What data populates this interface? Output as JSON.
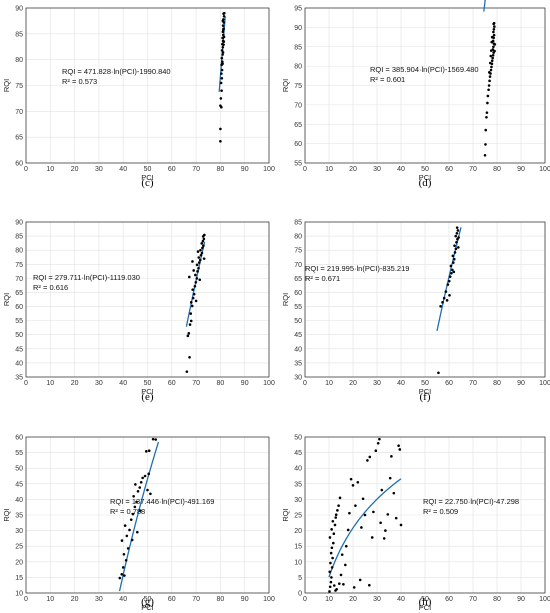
{
  "chart_data": [
    {
      "type": "scatter",
      "panel": "(c)",
      "xlabel": "PCI",
      "ylabel": "RQI",
      "xlim": [
        0,
        100
      ],
      "ylim": [
        60,
        90
      ],
      "xticks": [
        0,
        10,
        20,
        30,
        40,
        50,
        60,
        70,
        80,
        90,
        100
      ],
      "yticks": [
        60,
        65,
        70,
        75,
        80,
        85,
        90
      ],
      "grid": true,
      "annotation": [
        "RQI = 471.828·ln(PCI)-1990.840",
        "R² = 0.573"
      ],
      "fit": {
        "a": 471.828,
        "b": -1990.84,
        "x_range": [
          79.5,
          82
        ]
      },
      "points": [
        [
          80,
          64.2
        ],
        [
          80,
          66.6
        ],
        [
          80,
          71.1
        ],
        [
          80.4,
          70.8
        ],
        [
          80.2,
          72.5
        ],
        [
          80.5,
          74.0
        ],
        [
          80.3,
          75.5
        ],
        [
          80.6,
          76.4
        ],
        [
          80.4,
          77.3
        ],
        [
          80.7,
          78.0
        ],
        [
          80.5,
          79.0
        ],
        [
          80.8,
          79.6
        ],
        [
          80.6,
          80.3
        ],
        [
          80.9,
          81.0
        ],
        [
          80.7,
          81.8
        ],
        [
          81.0,
          82.4
        ],
        [
          80.8,
          83.0
        ],
        [
          81.1,
          83.6
        ],
        [
          80.9,
          84.2
        ],
        [
          81.2,
          84.8
        ],
        [
          81.0,
          85.4
        ],
        [
          81.3,
          86.0
        ],
        [
          81.1,
          86.6
        ],
        [
          81.4,
          87.2
        ],
        [
          81.2,
          87.8
        ],
        [
          81.5,
          88.4
        ],
        [
          81.3,
          88.9
        ],
        [
          81.6,
          89.0
        ],
        [
          81.0,
          87.5
        ],
        [
          81.2,
          85.8
        ],
        [
          81.4,
          83.5
        ],
        [
          80.9,
          79.2
        ],
        [
          81.1,
          81.4
        ],
        [
          81.3,
          82.9
        ],
        [
          81.5,
          84.4
        ]
      ]
    },
    {
      "type": "scatter",
      "panel": "(d)",
      "xlabel": "PCI",
      "ylabel": "RQI",
      "xlim": [
        0,
        100
      ],
      "ylim": [
        55,
        95
      ],
      "xticks": [
        0,
        10,
        20,
        30,
        40,
        50,
        60,
        70,
        80,
        90,
        100
      ],
      "yticks": [
        55,
        60,
        65,
        70,
        75,
        80,
        85,
        90,
        95
      ],
      "grid": true,
      "annotation": [
        "RQI = 385.904·ln(PCI)-1569.480",
        "R² = 0.601"
      ],
      "fit": {
        "a": 385.904,
        "b": -1569.48,
        "x_range": [
          74.5,
          79
        ]
      },
      "points": [
        [
          75,
          57.0
        ],
        [
          75.2,
          59.8
        ],
        [
          75.3,
          63.5
        ],
        [
          75.6,
          66.8
        ],
        [
          75.8,
          68.0
        ],
        [
          76.0,
          70.5
        ],
        [
          76.2,
          72.3
        ],
        [
          76.5,
          73.9
        ],
        [
          76.7,
          75.0
        ],
        [
          76.9,
          76.2
        ],
        [
          77.1,
          77.3
        ],
        [
          77.3,
          78.1
        ],
        [
          77.5,
          79.0
        ],
        [
          77.7,
          79.8
        ],
        [
          77.9,
          80.6
        ],
        [
          78.0,
          81.4
        ],
        [
          78.2,
          82.1
        ],
        [
          78.4,
          82.8
        ],
        [
          78.6,
          83.5
        ],
        [
          78.3,
          84.3
        ],
        [
          78.5,
          85.0
        ],
        [
          78.7,
          85.8
        ],
        [
          78.4,
          86.5
        ],
        [
          78.6,
          87.3
        ],
        [
          78.8,
          88.0
        ],
        [
          78.5,
          88.8
        ],
        [
          78.7,
          89.5
        ],
        [
          78.9,
          90.2
        ],
        [
          78.6,
          90.9
        ],
        [
          78.8,
          91.1
        ],
        [
          77.6,
          84.0
        ],
        [
          77.8,
          86.2
        ],
        [
          78.0,
          87.5
        ],
        [
          77.2,
          80.8
        ],
        [
          77.4,
          82.6
        ],
        [
          76.8,
          78.4
        ],
        [
          79.0,
          83.9
        ],
        [
          79.1,
          85.6
        ]
      ]
    },
    {
      "type": "scatter",
      "panel": "(e)",
      "xlabel": "PCI",
      "ylabel": "RQI",
      "xlim": [
        0,
        100
      ],
      "ylim": [
        35,
        90
      ],
      "xticks": [
        0,
        10,
        20,
        30,
        40,
        50,
        60,
        70,
        80,
        90,
        100
      ],
      "yticks": [
        35,
        40,
        45,
        50,
        55,
        60,
        65,
        70,
        75,
        80,
        85,
        90
      ],
      "grid": true,
      "annotation": [
        "RQI = 279.711·ln(PCI)-1119.030",
        "R² = 0.616"
      ],
      "fit": {
        "a": 279.711,
        "b": -1119.03,
        "x_range": [
          66,
          73.5
        ]
      },
      "points": [
        [
          66.2,
          36.9
        ],
        [
          67.3,
          42.0
        ],
        [
          66.6,
          49.6
        ],
        [
          67.0,
          50.5
        ],
        [
          67.5,
          53.6
        ],
        [
          68.0,
          54.9
        ],
        [
          67.8,
          57.5
        ],
        [
          68.4,
          60.2
        ],
        [
          68.0,
          61.5
        ],
        [
          68.8,
          63.0
        ],
        [
          69.2,
          64.4
        ],
        [
          68.6,
          66.0
        ],
        [
          69.5,
          67.2
        ],
        [
          69.9,
          68.6
        ],
        [
          70.3,
          70.0
        ],
        [
          69.7,
          71.2
        ],
        [
          70.6,
          72.5
        ],
        [
          71.0,
          73.6
        ],
        [
          70.4,
          74.8
        ],
        [
          71.3,
          75.6
        ],
        [
          71.7,
          76.5
        ],
        [
          71.1,
          77.4
        ],
        [
          72.0,
          78.2
        ],
        [
          72.4,
          79.0
        ],
        [
          71.8,
          80.0
        ],
        [
          72.6,
          80.8
        ],
        [
          73.0,
          81.6
        ],
        [
          72.3,
          82.4
        ],
        [
          72.8,
          83.2
        ],
        [
          73.2,
          84.0
        ],
        [
          72.9,
          84.9
        ],
        [
          73.4,
          85.4
        ],
        [
          70.0,
          62.0
        ],
        [
          69.0,
          72.8
        ],
        [
          68.5,
          76.0
        ],
        [
          71.5,
          69.5
        ],
        [
          70.8,
          79.5
        ],
        [
          73.3,
          77.0
        ],
        [
          67.2,
          70.5
        ]
      ]
    },
    {
      "type": "scatter",
      "panel": "(f)",
      "xlabel": "PCI",
      "ylabel": "RQI",
      "xlim": [
        0,
        100
      ],
      "ylim": [
        30,
        85
      ],
      "xticks": [
        0,
        10,
        20,
        30,
        40,
        50,
        60,
        70,
        80,
        90,
        100
      ],
      "yticks": [
        30,
        35,
        40,
        45,
        50,
        55,
        60,
        65,
        70,
        75,
        80,
        85
      ],
      "grid": true,
      "annotation": [
        "RQI = 219.995·ln(PCI)-835.219",
        "R² = 0.671"
      ],
      "fit": {
        "a": 219.995,
        "b": -835.219,
        "x_range": [
          55,
          65
        ]
      },
      "points": [
        [
          55.6,
          31.5
        ],
        [
          56.5,
          55.1
        ],
        [
          57.3,
          56.5
        ],
        [
          58.0,
          58.0
        ],
        [
          59.2,
          57.2
        ],
        [
          58.7,
          60.3
        ],
        [
          59.5,
          62.8
        ],
        [
          60.1,
          64.0
        ],
        [
          60.5,
          65.6
        ],
        [
          61.0,
          66.8
        ],
        [
          61.4,
          68.0
        ],
        [
          60.8,
          69.4
        ],
        [
          61.8,
          70.6
        ],
        [
          62.2,
          71.8
        ],
        [
          61.6,
          73.0
        ],
        [
          62.5,
          74.2
        ],
        [
          62.9,
          75.5
        ],
        [
          62.3,
          76.6
        ],
        [
          63.1,
          77.8
        ],
        [
          63.5,
          78.9
        ],
        [
          62.8,
          80.0
        ],
        [
          63.3,
          81.0
        ],
        [
          63.7,
          82.0
        ],
        [
          63.4,
          83.0
        ],
        [
          64.0,
          79.5
        ],
        [
          60.2,
          59.0
        ],
        [
          62.0,
          67.3
        ],
        [
          63.9,
          76.0
        ]
      ]
    },
    {
      "type": "scatter",
      "panel": "(g)",
      "xlabel": "PCI",
      "ylabel": "RQI",
      "xlim": [
        0,
        100
      ],
      "ylim": [
        10,
        60
      ],
      "xticks": [
        0,
        10,
        20,
        30,
        40,
        50,
        60,
        70,
        80,
        90,
        100
      ],
      "yticks": [
        10,
        15,
        20,
        25,
        30,
        35,
        40,
        45,
        50,
        55,
        60
      ],
      "grid": true,
      "annotation": [
        "RQI = 137.446·ln(PCI)-491.169",
        "R² = 0.788"
      ],
      "fit": {
        "a": 137.446,
        "b": -491.169,
        "x_range": [
          38.5,
          54.5
        ]
      },
      "points": [
        [
          38.6,
          14.8
        ],
        [
          39.4,
          16.0
        ],
        [
          40.5,
          15.6
        ],
        [
          40.0,
          18.2
        ],
        [
          41.2,
          20.5
        ],
        [
          40.3,
          22.4
        ],
        [
          42.0,
          24.3
        ],
        [
          39.5,
          26.8
        ],
        [
          41.5,
          28.3
        ],
        [
          42.6,
          30.2
        ],
        [
          40.8,
          31.6
        ],
        [
          43.3,
          33.5
        ],
        [
          44.0,
          35.3
        ],
        [
          44.8,
          37.6
        ],
        [
          45.5,
          39.2
        ],
        [
          44.3,
          41.0
        ],
        [
          46.1,
          42.6
        ],
        [
          46.8,
          43.8
        ],
        [
          45.0,
          44.8
        ],
        [
          47.4,
          45.5
        ],
        [
          48.0,
          46.9
        ],
        [
          49.0,
          47.5
        ],
        [
          50.5,
          48.2
        ],
        [
          51.2,
          41.8
        ],
        [
          50.0,
          43.0
        ],
        [
          49.5,
          55.4
        ],
        [
          50.7,
          55.6
        ],
        [
          52.3,
          59.3
        ],
        [
          53.4,
          59.2
        ],
        [
          47.0,
          36.4
        ],
        [
          43.7,
          27.0
        ],
        [
          45.8,
          29.5
        ]
      ]
    },
    {
      "type": "scatter",
      "panel": "(h)",
      "xlabel": "PCI",
      "ylabel": "RQI",
      "xlim": [
        0,
        100
      ],
      "ylim": [
        0,
        50
      ],
      "xticks": [
        0,
        10,
        20,
        30,
        40,
        50,
        60,
        70,
        80,
        90,
        100
      ],
      "yticks": [
        0,
        5,
        10,
        15,
        20,
        25,
        30,
        35,
        40,
        45,
        50
      ],
      "grid": true,
      "annotation": [
        "RQI = 22.750·ln(PCI)-47.298",
        "R² = 0.509"
      ],
      "fit": {
        "a": 22.75,
        "b": -47.298,
        "x_range": [
          10,
          40
        ]
      },
      "points": [
        [
          10.2,
          0.5
        ],
        [
          10.5,
          2.0
        ],
        [
          10.8,
          3.5
        ],
        [
          11.0,
          5.0
        ],
        [
          10.3,
          6.8
        ],
        [
          11.3,
          8.2
        ],
        [
          10.6,
          9.6
        ],
        [
          11.5,
          11.2
        ],
        [
          10.9,
          12.8
        ],
        [
          11.2,
          14.5
        ],
        [
          11.8,
          16.0
        ],
        [
          10.4,
          17.8
        ],
        [
          12.0,
          19.0
        ],
        [
          11.1,
          20.4
        ],
        [
          12.5,
          21.8
        ],
        [
          11.6,
          23.0
        ],
        [
          12.8,
          24.2
        ],
        [
          13.0,
          25.1
        ],
        [
          13.5,
          26.5
        ],
        [
          14.0,
          28.0
        ],
        [
          14.6,
          30.5
        ],
        [
          12.2,
          2.4
        ],
        [
          13.2,
          1.2
        ],
        [
          14.3,
          3.0
        ],
        [
          15.0,
          5.8
        ],
        [
          16.0,
          2.8
        ],
        [
          16.8,
          9.0
        ],
        [
          15.5,
          12.3
        ],
        [
          17.2,
          15.0
        ],
        [
          18.0,
          20.2
        ],
        [
          18.5,
          25.6
        ],
        [
          19.2,
          36.5
        ],
        [
          20.0,
          34.5
        ],
        [
          21.0,
          28.0
        ],
        [
          22.0,
          35.5
        ],
        [
          23.0,
          4.2
        ],
        [
          23.5,
          21.0
        ],
        [
          24.2,
          30.2
        ],
        [
          25.0,
          25.0
        ],
        [
          26.0,
          42.5
        ],
        [
          27.0,
          43.6
        ],
        [
          28.0,
          17.8
        ],
        [
          28.5,
          26.0
        ],
        [
          29.5,
          45.6
        ],
        [
          30.5,
          48.0
        ],
        [
          31.0,
          49.3
        ],
        [
          31.5,
          22.5
        ],
        [
          32.0,
          33.0
        ],
        [
          33.0,
          17.5
        ],
        [
          33.5,
          20.0
        ],
        [
          34.5,
          25.2
        ],
        [
          35.5,
          36.8
        ],
        [
          36.0,
          43.8
        ],
        [
          37.0,
          32.0
        ],
        [
          38.0,
          24.0
        ],
        [
          39.0,
          47.2
        ],
        [
          39.5,
          46.0
        ],
        [
          40.0,
          21.8
        ],
        [
          26.8,
          2.5
        ],
        [
          20.5,
          1.8
        ],
        [
          12.7,
          0.8
        ]
      ]
    }
  ]
}
